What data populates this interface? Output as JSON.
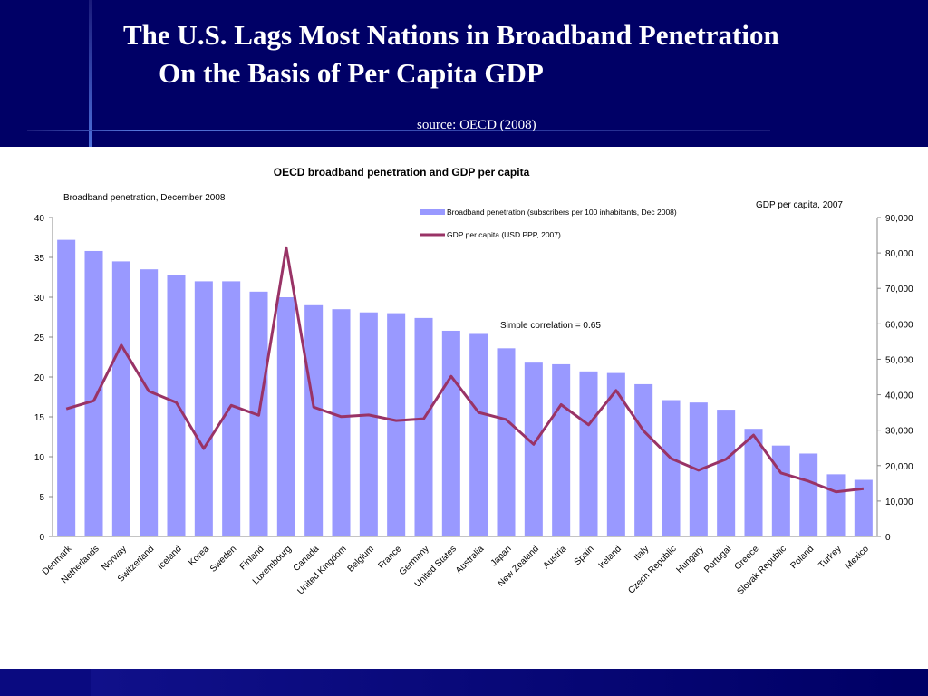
{
  "slide": {
    "title_line1": "The U.S. Lags Most Nations in Broadband Penetration",
    "title_line2": "On the Basis of  Per Capita GDP",
    "source": "source: OECD (2008)"
  },
  "colors": {
    "bar": "#9999ff",
    "line": "#993366",
    "header": "#000066"
  },
  "chart_data": {
    "type": "bar",
    "title": "OECD broadband penetration and GDP per capita",
    "ylabel": "Broadband penetration, December 2008",
    "y2label": "GDP per capita, 2007",
    "ylim": [
      0,
      40
    ],
    "y2lim": [
      0,
      90000
    ],
    "yticks": [
      "0",
      "5",
      "10",
      "15",
      "20",
      "25",
      "30",
      "35",
      "40"
    ],
    "y2ticks": [
      "0",
      "10,000",
      "20,000",
      "30,000",
      "40,000",
      "50,000",
      "60,000",
      "70,000",
      "80,000",
      "90,000"
    ],
    "annotation": "Simple correlation = 0.65",
    "legend_position": "top-right",
    "categories": [
      "Denmark",
      "Netherlands",
      "Norway",
      "Switzerland",
      "Iceland",
      "Korea",
      "Sweden",
      "Finland",
      "Luxembourg",
      "Canada",
      "United Kingdom",
      "Belgium",
      "France",
      "Germany",
      "United States",
      "Australia",
      "Japan",
      "New Zealand",
      "Austria",
      "Spain",
      "Ireland",
      "Italy",
      "Czech Republic",
      "Hungary",
      "Portugal",
      "Greece",
      "Slovak Republic",
      "Poland",
      "Turkey",
      "Mexico"
    ],
    "series": [
      {
        "name": "Broadband penetration (subscribers per 100 inhabitants, Dec 2008)",
        "type": "bar",
        "axis": "left",
        "values": [
          37.2,
          35.8,
          34.5,
          33.5,
          32.8,
          32.0,
          32.0,
          30.7,
          30.0,
          29.0,
          28.5,
          28.1,
          28.0,
          27.4,
          25.8,
          25.4,
          23.6,
          21.8,
          21.6,
          20.7,
          20.5,
          19.1,
          17.1,
          16.8,
          15.9,
          13.5,
          11.4,
          10.4,
          7.8,
          7.1
        ]
      },
      {
        "name": "GDP per capita (USD PPP, 2007)",
        "type": "line",
        "axis": "right",
        "values": [
          36000,
          38300,
          54000,
          41000,
          37800,
          24800,
          37000,
          34200,
          81500,
          36500,
          33800,
          34300,
          32700,
          33200,
          45200,
          35000,
          33000,
          26000,
          37200,
          31500,
          41200,
          29800,
          22000,
          18700,
          21800,
          28600,
          17900,
          15600,
          12600,
          13500
        ]
      }
    ]
  }
}
